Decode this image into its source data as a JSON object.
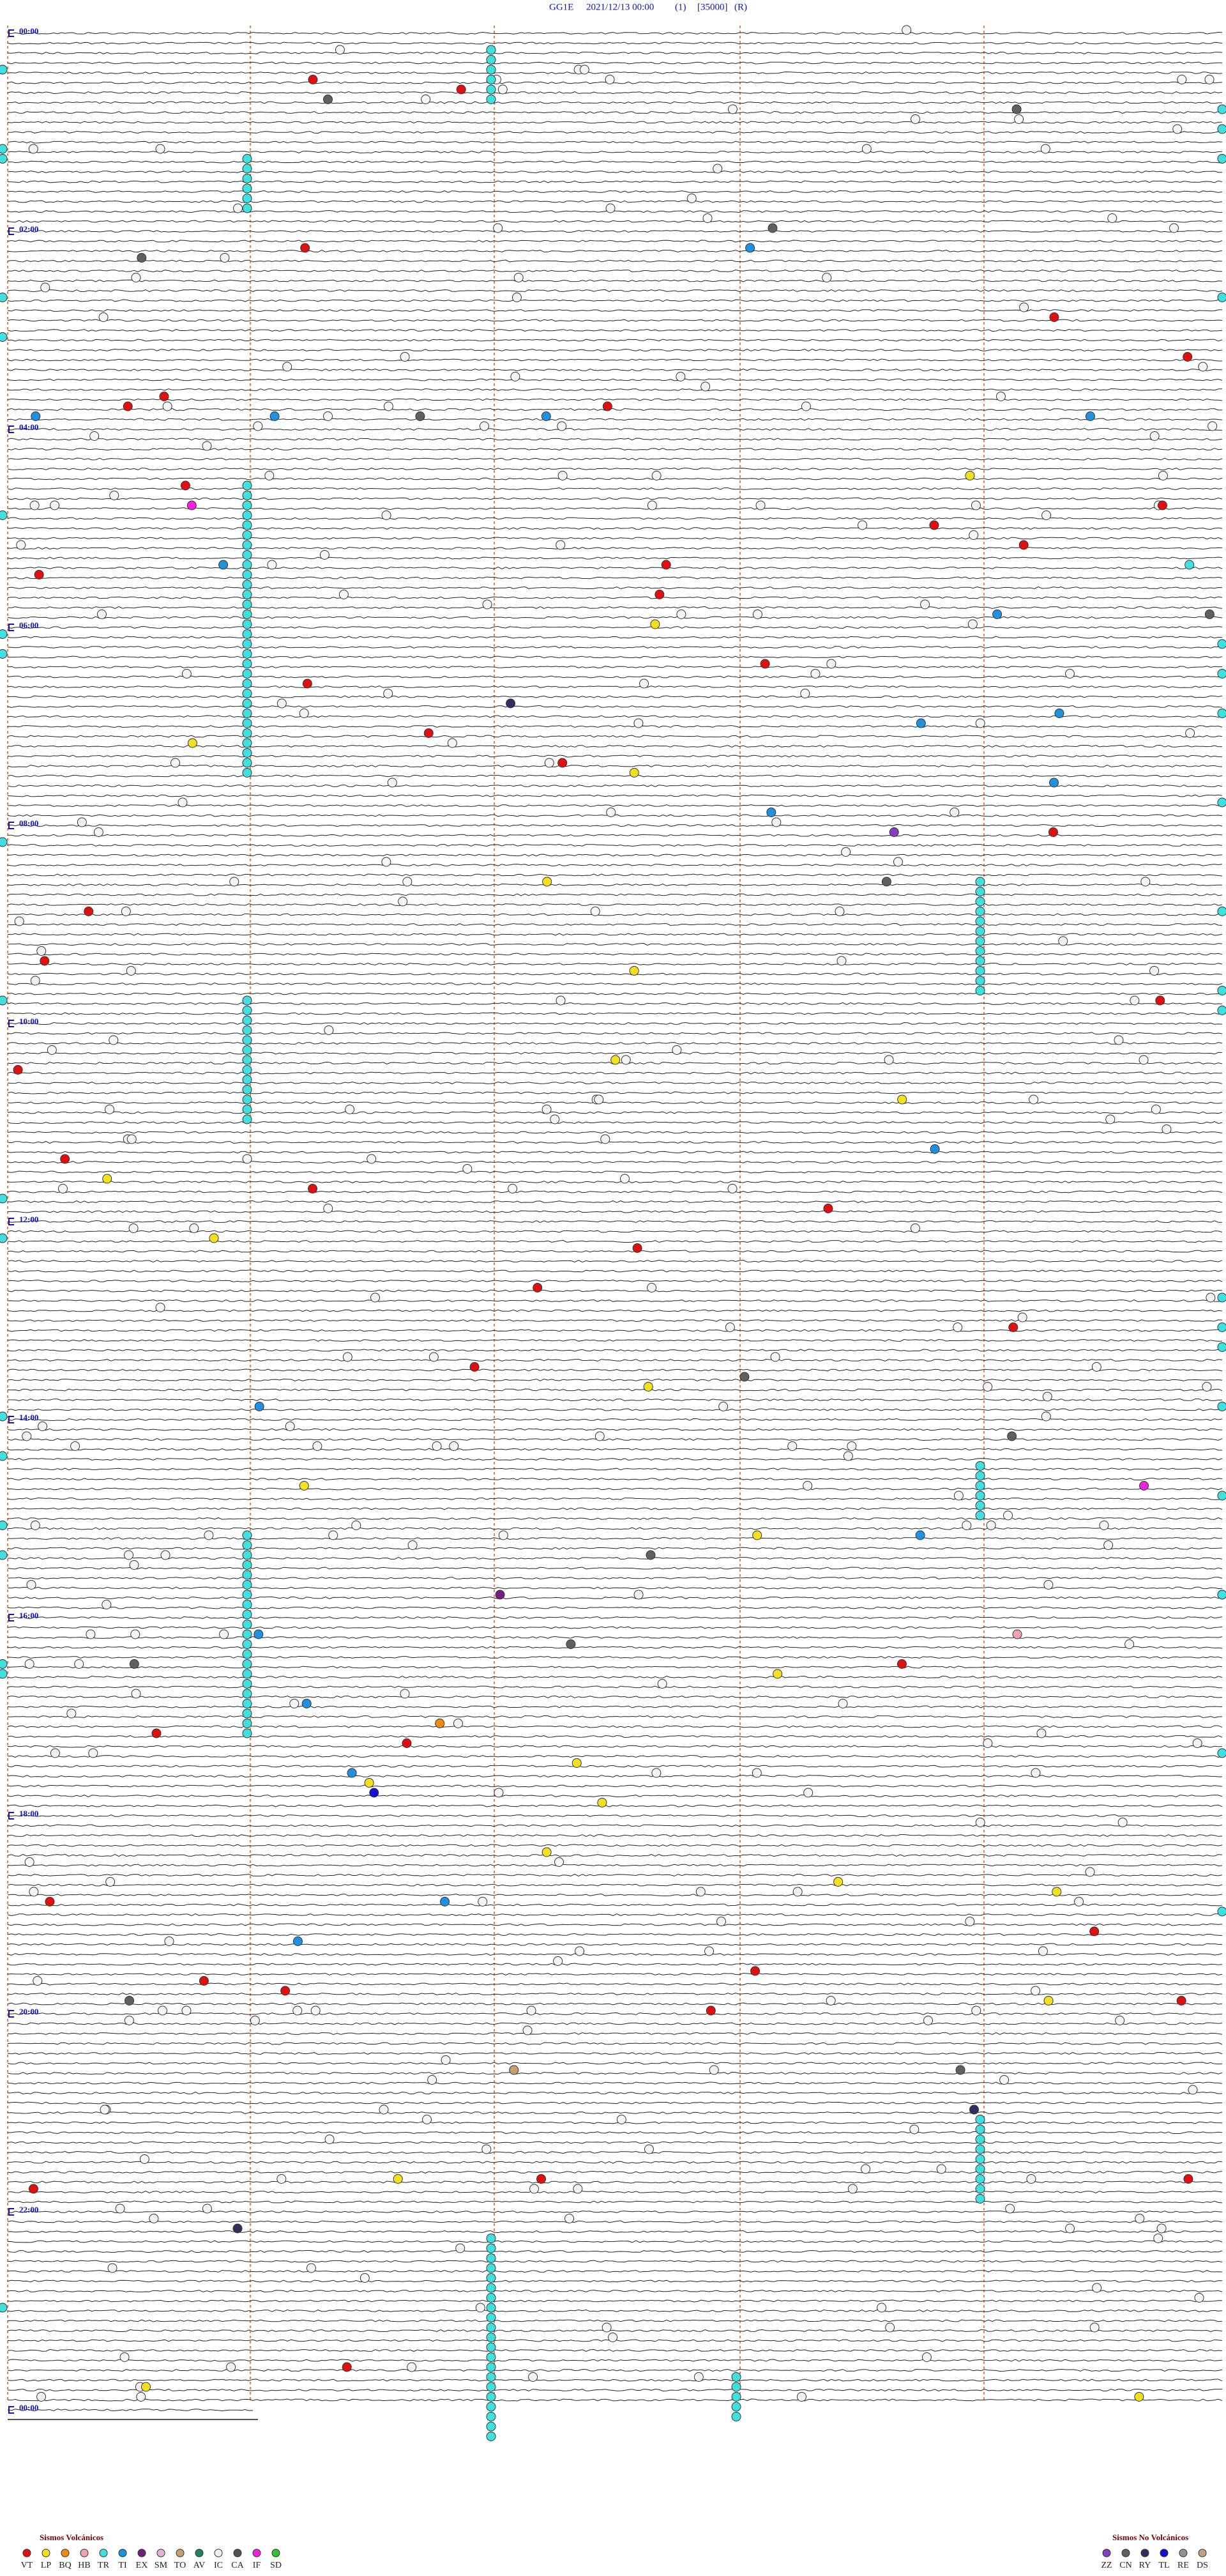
{
  "header": {
    "station": "GG1E",
    "datetime": "2021/12/13 00:00",
    "channel": "(1)",
    "scale": "[35000]",
    "mode": "(R)"
  },
  "time_labels": [
    "00:00",
    "02:00",
    "04:00",
    "06:00",
    "08:00",
    "10:00",
    "12:00",
    "14:00",
    "16:00",
    "18:00",
    "20:00",
    "22:00",
    "00:00"
  ],
  "legend": {
    "volcanic": {
      "title": "Sismos Volcánicos",
      "codes": [
        {
          "code": "VT",
          "color": "#e01010"
        },
        {
          "code": "LP",
          "color": "#f5e020"
        },
        {
          "code": "BQ",
          "color": "#f08c10"
        },
        {
          "code": "HB",
          "color": "#f4a0b0"
        },
        {
          "code": "TR",
          "color": "#40e0e0"
        },
        {
          "code": "TI",
          "color": "#2090e0"
        },
        {
          "code": "EX",
          "color": "#702080"
        },
        {
          "code": "SM",
          "color": "#e8b0d8"
        },
        {
          "code": "TO",
          "color": "#c8a070"
        },
        {
          "code": "AV",
          "color": "#208060"
        },
        {
          "code": "IC",
          "color": "#f0f0f0"
        },
        {
          "code": "CA",
          "color": "#505050"
        },
        {
          "code": "IF",
          "color": "#f020e0"
        },
        {
          "code": "SD",
          "color": "#30c030"
        }
      ]
    },
    "non_volcanic": {
      "title": "Sismos No Volcánicos",
      "codes": [
        {
          "code": "ZZ",
          "color": "#8040c0"
        },
        {
          "code": "CN",
          "color": "#606060"
        },
        {
          "code": "RY",
          "color": "#303060"
        },
        {
          "code": "TL",
          "color": "#1010d0"
        },
        {
          "code": "RE",
          "color": "#909090"
        },
        {
          "code": "DS",
          "color": "#c0a080"
        }
      ]
    }
  }
}
